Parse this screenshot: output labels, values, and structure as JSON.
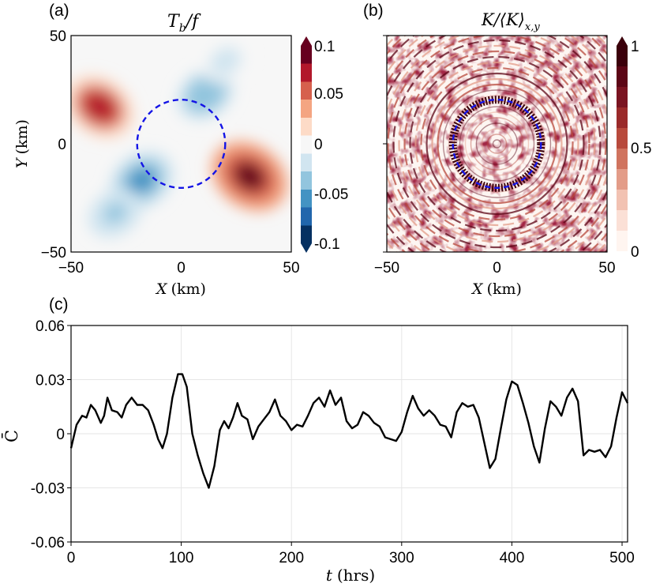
{
  "chart_data": [
    {
      "panel": "(a)",
      "type": "heatmap",
      "title_symbol": "T",
      "title_subscript": "b",
      "title_suffix": "/f",
      "xlabel_symbol": "X",
      "xlabel_unit": "(km)",
      "ylabel_symbol": "Y",
      "ylabel_unit": "(km)",
      "xlim": [
        -50,
        50
      ],
      "ylim": [
        -50,
        50
      ],
      "xticks": [
        "−50",
        "0",
        "50"
      ],
      "yticks": [
        "50",
        "0",
        "−50"
      ],
      "colorbar": {
        "min": -0.1,
        "max": 0.1,
        "extend": "both",
        "ticks": [
          "0.1",
          "0.05",
          "0",
          "-0.05",
          "-0.1"
        ],
        "colormap": [
          "#053061",
          "#2166ac",
          "#4393c3",
          "#92c5de",
          "#d1e5f0",
          "#f7f7f7",
          "#fddbc7",
          "#f4a582",
          "#d6604d",
          "#b2182b",
          "#67001f"
        ]
      },
      "circle_radius_km": 20,
      "circle_color": "#1414e6",
      "features": [
        {
          "kind": "positive",
          "x": -37,
          "y": 17,
          "peak": 0.08
        },
        {
          "kind": "positive",
          "x": 31,
          "y": -15,
          "peak": 0.1
        },
        {
          "kind": "negative",
          "x": -18,
          "y": -17,
          "peak": -0.07
        },
        {
          "kind": "negative",
          "x": 11,
          "y": 23,
          "peak": -0.05
        },
        {
          "kind": "negative",
          "x": -30,
          "y": -32,
          "peak": -0.04
        },
        {
          "kind": "negative",
          "x": 20,
          "y": 38,
          "peak": -0.02
        }
      ]
    },
    {
      "panel": "(b)",
      "type": "heatmap",
      "title_symbol": "K",
      "title_mid": "/⟨K⟩",
      "title_subscript": "x,y",
      "xlabel_symbol": "X",
      "xlabel_unit": "(km)",
      "xlim": [
        -50,
        50
      ],
      "ylim": [
        -50,
        50
      ],
      "xticks": [
        "−50",
        "0",
        "50"
      ],
      "colorbar": {
        "min": 0,
        "max": 1,
        "extend": "max",
        "ticks": [
          "1",
          "0.5",
          "0"
        ],
        "colormap": [
          "#fff5f0",
          "#fbe0d6",
          "#f2c2b2",
          "#e39c88",
          "#d0735e",
          "#b84a3c",
          "#9a2a2a",
          "#7a1421",
          "#5c0616",
          "#3b000b"
        ]
      },
      "circle_radius_km": 20,
      "circle_color": "#1414e6",
      "ring_radius_km": 20
    },
    {
      "panel": "(c)",
      "type": "line",
      "ylabel": "C̄",
      "xlabel_symbol": "t",
      "xlabel_unit": "(hrs)",
      "xlim": [
        0,
        505
      ],
      "ylim": [
        -0.06,
        0.06
      ],
      "xticks": [
        "0",
        "100",
        "200",
        "300",
        "400",
        "500"
      ],
      "yticks": [
        "0.06",
        "0.03",
        "0",
        "-0.03",
        "-0.06"
      ],
      "grid": true,
      "series": [
        {
          "name": "C-bar",
          "color": "#000000",
          "x": [
            0,
            5,
            10,
            14,
            18,
            22,
            27,
            30,
            33,
            37,
            42,
            46,
            50,
            55,
            60,
            65,
            70,
            75,
            79,
            83,
            87,
            92,
            97,
            101,
            105,
            110,
            115,
            120,
            125,
            130,
            135,
            139,
            143,
            147,
            151,
            155,
            160,
            165,
            170,
            175,
            180,
            185,
            190,
            195,
            200,
            205,
            210,
            215,
            220,
            225,
            230,
            235,
            240,
            245,
            250,
            255,
            260,
            265,
            270,
            275,
            280,
            285,
            290,
            295,
            300,
            305,
            310,
            315,
            320,
            325,
            330,
            335,
            340,
            345,
            350,
            355,
            360,
            365,
            370,
            375,
            380,
            385,
            390,
            395,
            400,
            405,
            410,
            415,
            420,
            425,
            430,
            435,
            440,
            445,
            450,
            455,
            460,
            465,
            470,
            475,
            480,
            485,
            490,
            495,
            500,
            505
          ],
          "values": [
            -0.008,
            0.005,
            0.01,
            0.009,
            0.016,
            0.013,
            0.006,
            0.01,
            0.02,
            0.013,
            0.012,
            0.009,
            0.016,
            0.02,
            0.016,
            0.016,
            0.013,
            0.005,
            -0.003,
            -0.008,
            0.0,
            0.02,
            0.033,
            0.033,
            0.026,
            0.0,
            -0.012,
            -0.022,
            -0.03,
            -0.018,
            0.002,
            0.007,
            0.003,
            0.009,
            0.017,
            0.01,
            0.008,
            -0.003,
            0.004,
            0.008,
            0.012,
            0.019,
            0.01,
            0.007,
            0.002,
            0.005,
            0.004,
            0.01,
            0.017,
            0.02,
            0.015,
            0.024,
            0.016,
            0.02,
            0.007,
            0.003,
            0.005,
            0.012,
            0.01,
            0.006,
            0.004,
            -0.002,
            -0.003,
            -0.004,
            0.001,
            0.012,
            0.021,
            0.014,
            0.01,
            0.013,
            0.01,
            0.005,
            0.004,
            -0.002,
            0.012,
            0.017,
            0.015,
            0.016,
            0.009,
            -0.005,
            -0.019,
            -0.014,
            0.003,
            0.019,
            0.029,
            0.027,
            0.017,
            0.006,
            -0.007,
            -0.016,
            0.003,
            0.018,
            0.015,
            0.01,
            0.02,
            0.025,
            0.018,
            -0.012,
            -0.009,
            -0.01,
            -0.009,
            -0.013,
            -0.007,
            0.009,
            0.023,
            0.017
          ]
        }
      ]
    }
  ]
}
